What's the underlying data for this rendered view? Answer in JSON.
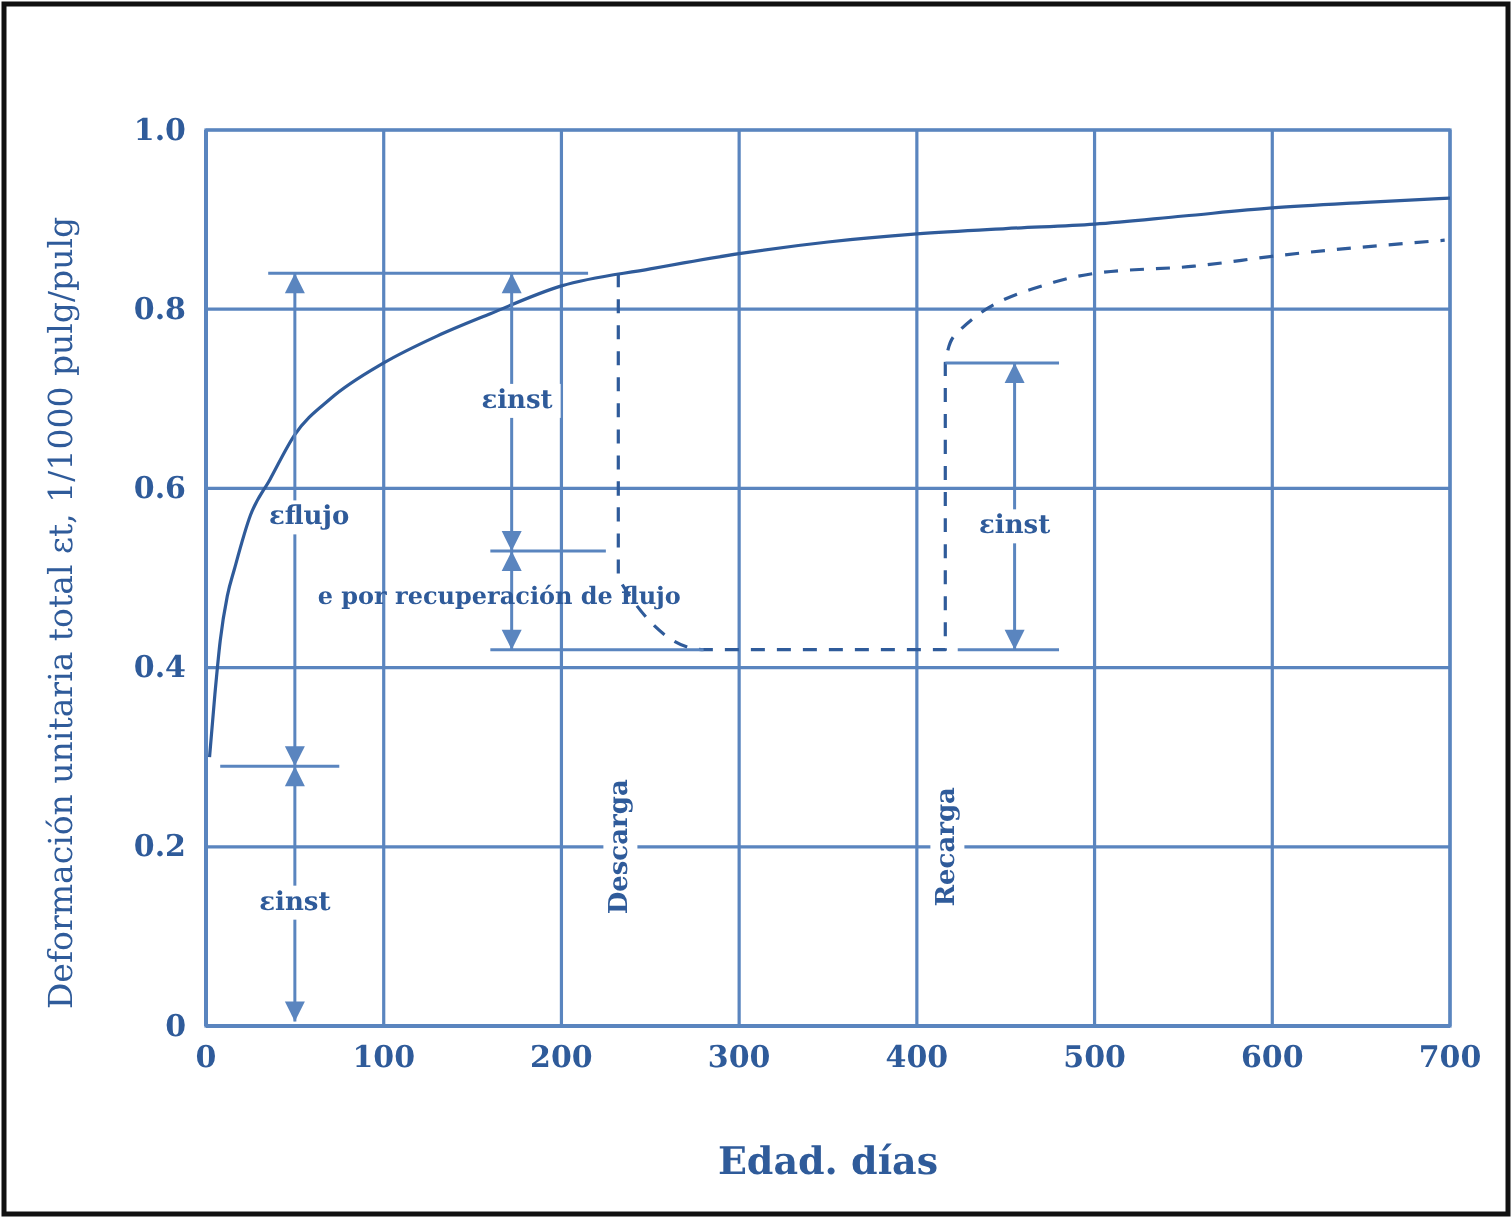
{
  "chart_data": {
    "type": "line",
    "xlabel": "Edad. días",
    "ylabel": "Deformación unitaria total εt, 1/1000 pulg/pulg",
    "xlim": [
      0,
      700
    ],
    "xticks": [
      0,
      100,
      200,
      300,
      400,
      500,
      600,
      700
    ],
    "ylim": [
      0,
      1
    ],
    "yticks": [
      0,
      0.2,
      0.4,
      0.6,
      0.8,
      {
        "value": 1,
        "label": "1.0"
      }
    ],
    "grid": true,
    "marker": "none",
    "series": [
      {
        "color": "#2f5b9a",
        "line_style": "solid",
        "x": [
          2,
          5,
          8,
          12,
          16,
          25,
          36,
          50,
          70,
          100,
          130,
          160,
          200,
          250,
          300,
          350,
          400,
          450,
          500,
          550,
          600,
          650,
          700
        ],
        "values": [
          0.3,
          0.37,
          0.43,
          0.48,
          0.51,
          0.57,
          0.61,
          0.66,
          0.7,
          0.74,
          0.77,
          0.795,
          0.826,
          0.845,
          0.862,
          0.875,
          0.884,
          0.89,
          0.895,
          0.904,
          0.913,
          0.919,
          0.924
        ]
      },
      {
        "color": "#2f5b9a",
        "line_style": "dashed",
        "x": [
          232,
          232,
          280,
          416,
          416,
          421,
          477,
          500,
          556,
          604,
          697
        ],
        "values": [
          0.84,
          0.5,
          0.42,
          0.42,
          0.74,
          0.77,
          0.83,
          0.84,
          0.848,
          0.86,
          0.877
        ]
      }
    ],
    "annotations": [
      "εflujo",
      "εinst",
      "εinst",
      "e por recuperación de flujo",
      "εinst",
      "Descarga",
      "Recarga"
    ]
  }
}
